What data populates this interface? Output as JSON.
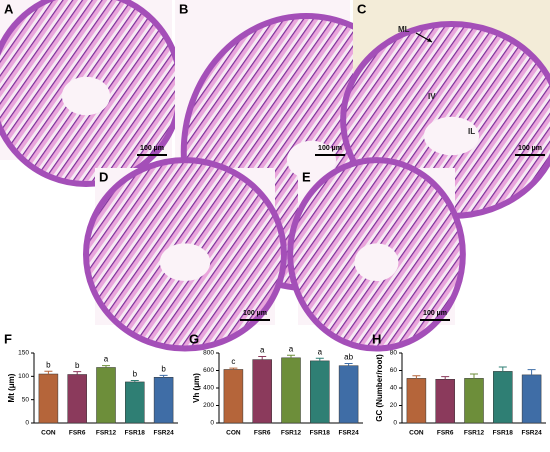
{
  "panels": [
    {
      "label": "A",
      "scale_bar": "100 µm"
    },
    {
      "label": "B",
      "scale_bar": "100 µm"
    },
    {
      "label": "C",
      "scale_bar": "100 µm",
      "annotations": [
        "ML",
        "IV",
        "IL"
      ]
    },
    {
      "label": "D",
      "scale_bar": "100 µm"
    },
    {
      "label": "E",
      "scale_bar": "100 µm"
    }
  ],
  "chart_data": [
    {
      "type": "bar",
      "panel": "F",
      "y_label": "Mt (μm)",
      "categories": [
        "CON",
        "FSR6",
        "FSR12",
        "FSR18",
        "FSR24"
      ],
      "values": [
        105,
        104,
        119,
        88,
        98
      ],
      "errors": [
        6,
        6,
        4,
        3,
        4
      ],
      "letters": [
        "b",
        "b",
        "a",
        "b",
        "b"
      ],
      "colors": [
        "#b5653a",
        "#8b3a5c",
        "#6d8e3a",
        "#2f7f74",
        "#3f6da6"
      ],
      "ylim": [
        0,
        150
      ],
      "yticks": [
        0,
        50,
        100,
        150
      ]
    },
    {
      "type": "bar",
      "panel": "G",
      "y_label": "Vh (μm)",
      "categories": [
        "CON",
        "FSR6",
        "FSR12",
        "FSR18",
        "FSR24"
      ],
      "values": [
        612,
        725,
        745,
        710,
        655
      ],
      "errors": [
        15,
        35,
        30,
        30,
        25
      ],
      "letters": [
        "c",
        "a",
        "a",
        "a",
        "ab"
      ],
      "colors": [
        "#b5653a",
        "#8b3a5c",
        "#6d8e3a",
        "#2f7f74",
        "#3f6da6"
      ],
      "ylim": [
        0,
        800
      ],
      "yticks": [
        0,
        200,
        400,
        600,
        800
      ]
    },
    {
      "type": "bar",
      "panel": "H",
      "y_label": "GC (Number/root)",
      "categories": [
        "CON",
        "FSR6",
        "FSR12",
        "FSR18",
        "FSR24"
      ],
      "values": [
        51,
        50,
        51,
        59,
        55
      ],
      "errors": [
        3,
        3,
        5,
        5,
        6
      ],
      "colors": [
        "#b5653a",
        "#8b3a5c",
        "#6d8e3a",
        "#2f7f74",
        "#3f6da6"
      ],
      "ylim": [
        0,
        80
      ],
      "yticks": [
        0,
        20,
        40,
        60,
        80
      ]
    }
  ]
}
